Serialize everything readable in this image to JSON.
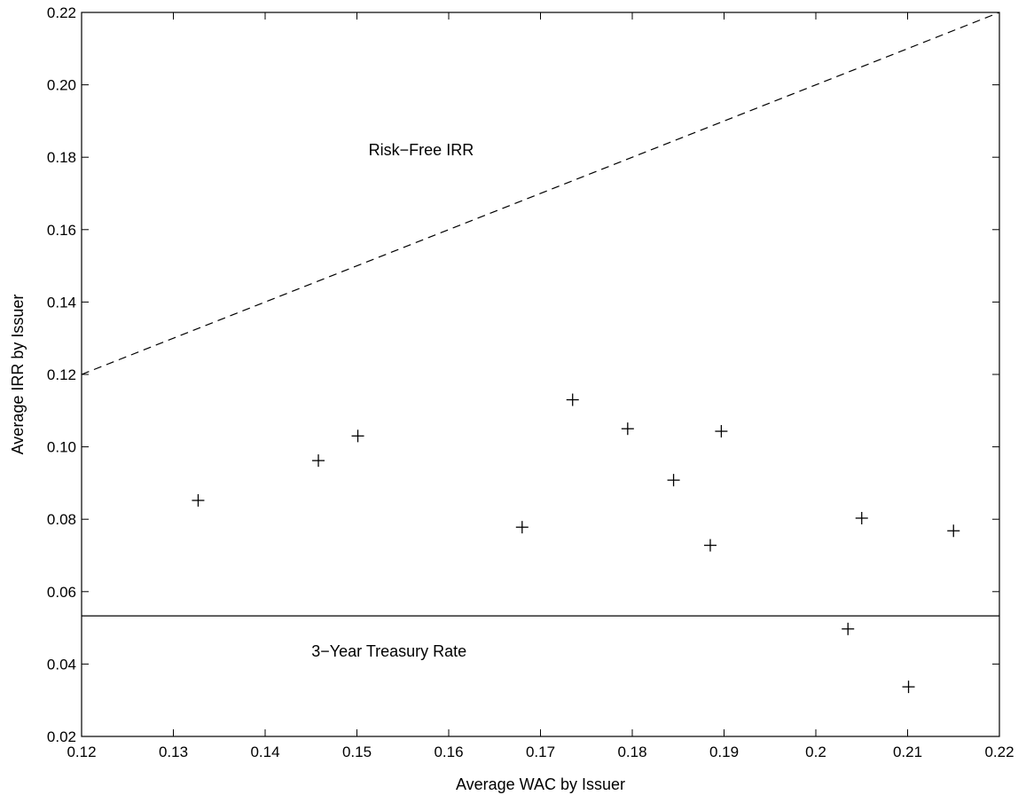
{
  "chart_data": {
    "type": "scatter",
    "xlabel": "Average WAC by Issuer",
    "ylabel": "Average IRR by Issuer",
    "xlim": [
      0.12,
      0.22
    ],
    "ylim": [
      0.02,
      0.22
    ],
    "xticks": [
      "0.12",
      "0.13",
      "0.14",
      "0.15",
      "0.16",
      "0.17",
      "0.18",
      "0.19",
      "0.2",
      "0.21",
      "0.22"
    ],
    "yticks": [
      "0.02",
      "0.04",
      "0.06",
      "0.08",
      "0.10",
      "0.12",
      "0.14",
      "0.16",
      "0.18",
      "0.20",
      "0.22"
    ],
    "grid": false,
    "marker": "plus",
    "series": [
      {
        "points": [
          {
            "x": 0.1327,
            "y": 0.0852
          },
          {
            "x": 0.1458,
            "y": 0.0962
          },
          {
            "x": 0.1501,
            "y": 0.103
          },
          {
            "x": 0.168,
            "y": 0.0778
          },
          {
            "x": 0.1735,
            "y": 0.113
          },
          {
            "x": 0.1795,
            "y": 0.105
          },
          {
            "x": 0.1845,
            "y": 0.0908
          },
          {
            "x": 0.1885,
            "y": 0.0728
          },
          {
            "x": 0.1897,
            "y": 0.1043
          },
          {
            "x": 0.2035,
            "y": 0.0497
          },
          {
            "x": 0.205,
            "y": 0.0803
          },
          {
            "x": 0.2101,
            "y": 0.0337
          },
          {
            "x": 0.215,
            "y": 0.0768
          }
        ]
      }
    ],
    "reference_lines": [
      {
        "label": "Risk−Free IRR",
        "style": "dashed",
        "from": [
          0.12,
          0.12
        ],
        "to": [
          0.22,
          0.22
        ],
        "label_at": [
          0.157,
          0.182
        ]
      },
      {
        "label": "3−Year Treasury Rate",
        "style": "solid",
        "from": [
          0.12,
          0.0533
        ],
        "to": [
          0.22,
          0.0533
        ],
        "label_at": [
          0.1535,
          0.0435
        ]
      }
    ]
  }
}
